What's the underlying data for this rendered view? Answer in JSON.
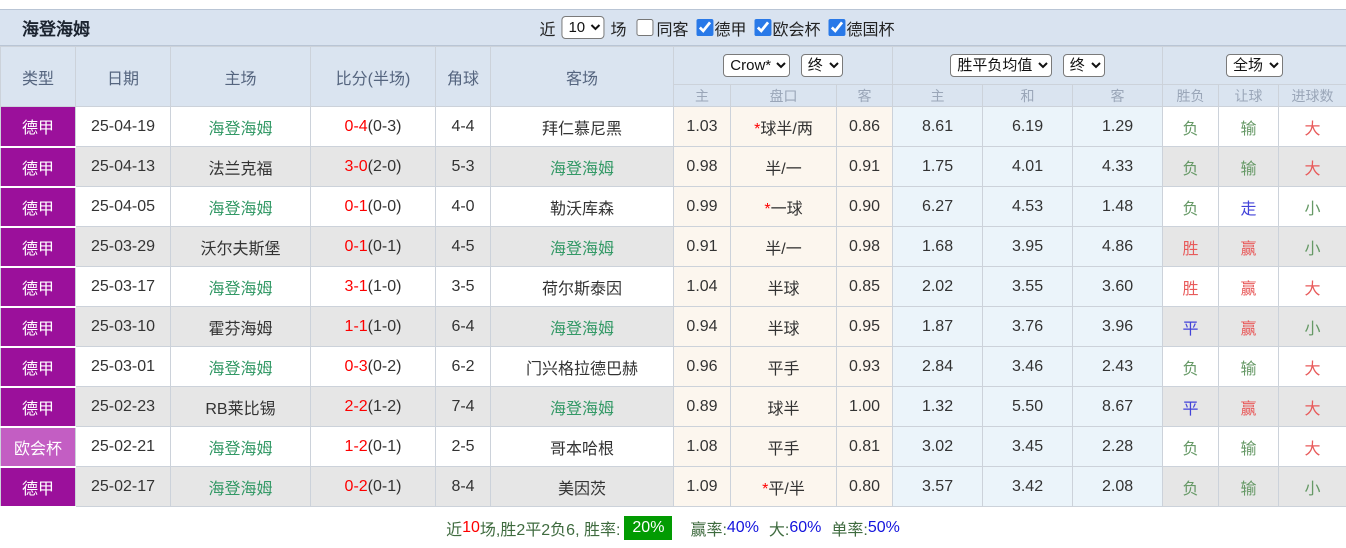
{
  "title": "海登海姆",
  "toolbar": {
    "near_label": "近",
    "near_value": "10",
    "games_label": "场",
    "same_venue_label": "同客",
    "same_venue_checked": false,
    "leagues": [
      {
        "label": "德甲",
        "checked": true
      },
      {
        "label": "欧会杯",
        "checked": true
      },
      {
        "label": "德国杯",
        "checked": true
      }
    ]
  },
  "table": {
    "columns": [
      "类型",
      "日期",
      "主场",
      "比分(半场)",
      "角球",
      "客场"
    ],
    "selects": {
      "company": "Crow*",
      "company_time": "终",
      "avg": "胜平负均值",
      "avg_time": "终",
      "scope": "全场"
    },
    "subheaders": [
      "主",
      "盘口",
      "客",
      "主",
      "和",
      "客",
      "胜负",
      "让球",
      "进球数"
    ],
    "rows": [
      {
        "league": "德甲",
        "lg": "p",
        "date": "25-04-19",
        "home": "海登海姆",
        "home_hl": true,
        "score": "0-4",
        "half": "(0-3)",
        "corner": "4-4",
        "away": "拜仁慕尼黑",
        "away_hl": false,
        "o1": "1.03",
        "star": "",
        "hc": "球半/两",
        "star_mark": "*",
        "o2": "0.86",
        "a1": "8.61",
        "a2": "6.19",
        "a3": "1.29",
        "r1": "负",
        "c1": "c-g",
        "r2": "输",
        "c2": "c-g",
        "r3": "大",
        "c3": "c-r"
      },
      {
        "league": "德甲",
        "lg": "p",
        "date": "25-04-13",
        "home": "法兰克福",
        "home_hl": false,
        "score": "3-0",
        "half": "(2-0)",
        "corner": "5-3",
        "away": "海登海姆",
        "away_hl": true,
        "o1": "0.98",
        "star": "",
        "hc": "半/一",
        "star_mark": "",
        "o2": "0.91",
        "a1": "1.75",
        "a2": "4.01",
        "a3": "4.33",
        "r1": "负",
        "c1": "c-g",
        "r2": "输",
        "c2": "c-g",
        "r3": "大",
        "c3": "c-r"
      },
      {
        "league": "德甲",
        "lg": "p",
        "date": "25-04-05",
        "home": "海登海姆",
        "home_hl": true,
        "score": "0-1",
        "half": "(0-0)",
        "corner": "4-0",
        "away": "勒沃库森",
        "away_hl": false,
        "o1": "0.99",
        "star": "",
        "hc": "一球",
        "star_mark": "*",
        "o2": "0.90",
        "a1": "6.27",
        "a2": "4.53",
        "a3": "1.48",
        "r1": "负",
        "c1": "c-g",
        "r2": "走",
        "c2": "c-b",
        "r3": "小",
        "c3": "c-g"
      },
      {
        "league": "德甲",
        "lg": "p",
        "date": "25-03-29",
        "home": "沃尔夫斯堡",
        "home_hl": false,
        "score": "0-1",
        "half": "(0-1)",
        "corner": "4-5",
        "away": "海登海姆",
        "away_hl": true,
        "o1": "0.91",
        "star": "",
        "hc": "半/一",
        "star_mark": "",
        "o2": "0.98",
        "a1": "1.68",
        "a2": "3.95",
        "a3": "4.86",
        "r1": "胜",
        "c1": "c-r",
        "r2": "赢",
        "c2": "c-r",
        "r3": "小",
        "c3": "c-g"
      },
      {
        "league": "德甲",
        "lg": "p",
        "date": "25-03-17",
        "home": "海登海姆",
        "home_hl": true,
        "score": "3-1",
        "half": "(1-0)",
        "corner": "3-5",
        "away": "荷尔斯泰因",
        "away_hl": false,
        "o1": "1.04",
        "star": "",
        "hc": "半球",
        "star_mark": "",
        "o2": "0.85",
        "a1": "2.02",
        "a2": "3.55",
        "a3": "3.60",
        "r1": "胜",
        "c1": "c-r",
        "r2": "赢",
        "c2": "c-r",
        "r3": "大",
        "c3": "c-r"
      },
      {
        "league": "德甲",
        "lg": "p",
        "date": "25-03-10",
        "home": "霍芬海姆",
        "home_hl": false,
        "score": "1-1",
        "half": "(1-0)",
        "corner": "6-4",
        "away": "海登海姆",
        "away_hl": true,
        "o1": "0.94",
        "star": "",
        "hc": "半球",
        "star_mark": "",
        "o2": "0.95",
        "a1": "1.87",
        "a2": "3.76",
        "a3": "3.96",
        "r1": "平",
        "c1": "c-b",
        "r2": "赢",
        "c2": "c-r",
        "r3": "小",
        "c3": "c-g"
      },
      {
        "league": "德甲",
        "lg": "p",
        "date": "25-03-01",
        "home": "海登海姆",
        "home_hl": true,
        "score": "0-3",
        "half": "(0-2)",
        "corner": "6-2",
        "away": "门兴格拉德巴赫",
        "away_hl": false,
        "o1": "0.96",
        "star": "",
        "hc": "平手",
        "star_mark": "",
        "o2": "0.93",
        "a1": "2.84",
        "a2": "3.46",
        "a3": "2.43",
        "r1": "负",
        "c1": "c-g",
        "r2": "输",
        "c2": "c-g",
        "r3": "大",
        "c3": "c-r"
      },
      {
        "league": "德甲",
        "lg": "p",
        "date": "25-02-23",
        "home": "RB莱比锡",
        "home_hl": false,
        "score": "2-2",
        "half": "(1-2)",
        "corner": "7-4",
        "away": "海登海姆",
        "away_hl": true,
        "o1": "0.89",
        "star": "",
        "hc": "球半",
        "star_mark": "",
        "o2": "1.00",
        "a1": "1.32",
        "a2": "5.50",
        "a3": "8.67",
        "r1": "平",
        "c1": "c-b",
        "r2": "赢",
        "c2": "c-r",
        "r3": "大",
        "c3": "c-r"
      },
      {
        "league": "欧会杯",
        "lg": "l",
        "date": "25-02-21",
        "home": "海登海姆",
        "home_hl": true,
        "score": "1-2",
        "half": "(0-1)",
        "corner": "2-5",
        "away": "哥本哈根",
        "away_hl": false,
        "o1": "1.08",
        "star": "",
        "hc": "平手",
        "star_mark": "",
        "o2": "0.81",
        "a1": "3.02",
        "a2": "3.45",
        "a3": "2.28",
        "r1": "负",
        "c1": "c-g",
        "r2": "输",
        "c2": "c-g",
        "r3": "大",
        "c3": "c-r"
      },
      {
        "league": "德甲",
        "lg": "p",
        "date": "25-02-17",
        "home": "海登海姆",
        "home_hl": true,
        "score": "0-2",
        "half": "(0-1)",
        "corner": "8-4",
        "away": "美因茨",
        "away_hl": false,
        "o1": "1.09",
        "star": "",
        "hc": "平/半",
        "star_mark": "*",
        "o2": "0.80",
        "a1": "3.57",
        "a2": "3.42",
        "a3": "2.08",
        "r1": "负",
        "c1": "c-g",
        "r2": "输",
        "c2": "c-g",
        "r3": "小",
        "c3": "c-g"
      }
    ]
  },
  "footer": {
    "prefix": "近",
    "count": "10",
    "mid": "场,胜2平2负6, 胜率:",
    "win_rate": "20%",
    "stats": [
      {
        "label": "赢率:",
        "value": "40%"
      },
      {
        "label": "大:",
        "value": "60%"
      },
      {
        "label": "单率:",
        "value": "50%"
      }
    ]
  },
  "colors": {
    "header_bg": "#dae4f0",
    "league_purple": "#9b109b",
    "league_light_purple": "#c35ec3",
    "team_highlight_green": "#339966",
    "score_red": "#fe0000",
    "result_green": "#669966",
    "result_red": "#e85b5b",
    "result_blue": "#4343d9",
    "odds_col_bg": "#fcf6ee",
    "avg_col_bg": "#ebf4fa",
    "stripe_gray": "#e6e6e6",
    "badge_green": "#029b02",
    "footer_value_blue": "#1414dd",
    "checkbox_blue": "#2979e8"
  }
}
